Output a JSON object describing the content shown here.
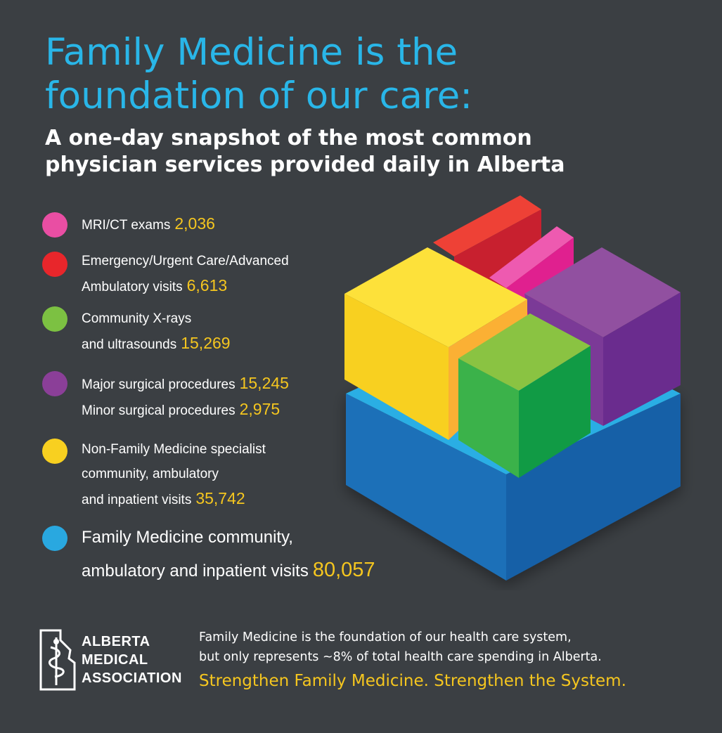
{
  "title": "Family Medicine is the foundation of our care:",
  "subtitle": "A one-day snapshot of the most common physician services provided daily in Alberta",
  "legend": [
    {
      "color": "#e94ea3",
      "lines": [
        {
          "text": "MRI/CT exams",
          "value": "2,036"
        }
      ]
    },
    {
      "color": "#e8262b",
      "lines": [
        {
          "text": "Emergency/Urgent Care/Advanced",
          "value": ""
        },
        {
          "text": "Ambulatory visits",
          "value": "6,613"
        }
      ]
    },
    {
      "color": "#7cc142",
      "lines": [
        {
          "text": "Community X-rays",
          "value": ""
        },
        {
          "text": "and ultrasounds",
          "value": "15,269"
        }
      ]
    },
    {
      "color": "#8b3f98",
      "lines": [
        {
          "text": "Major surgical procedures",
          "value": "15,245"
        },
        {
          "text": "Minor surgical procedures",
          "value": "2,975"
        }
      ]
    },
    {
      "color": "#f8d020",
      "lines": [
        {
          "text": "Non-Family Medicine specialist",
          "value": ""
        },
        {
          "text": "community, ambulatory",
          "value": ""
        },
        {
          "text": "and inpatient visits",
          "value": "35,742"
        }
      ]
    },
    {
      "color": "#29a8e0",
      "lines": [
        {
          "text": "Family Medicine community,",
          "value": ""
        },
        {
          "text": "ambulatory and inpatient visits",
          "value": "80,057"
        }
      ]
    }
  ],
  "logo": {
    "line1": "ALBERTA",
    "line2": "MEDICAL",
    "line3": "ASSOCIATION"
  },
  "footer": {
    "line1": "Family Medicine is the foundation of our health care system,",
    "line2": "but only represents ~8% of total health care spending in Alberta.",
    "tagline": "Strengthen Family Medicine. Strengthen the System."
  }
}
